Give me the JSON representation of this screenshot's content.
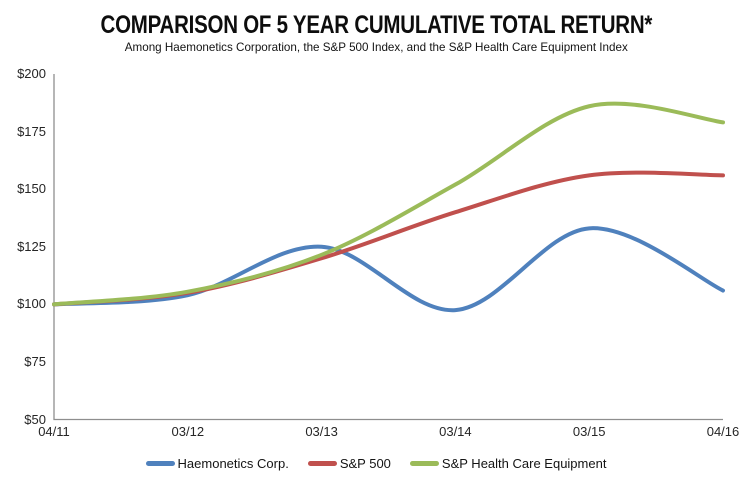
{
  "title": "COMPARISON OF 5 YEAR CUMULATIVE TOTAL RETURN*",
  "subtitle": "Among Haemonetics Corporation, the S&P 500 Index, and the S&P Health Care Equipment Index",
  "chart_data": {
    "type": "line",
    "smooth": true,
    "title": "COMPARISON OF 5 YEAR CUMULATIVE TOTAL RETURN*",
    "subtitle": "Among Haemonetics Corporation, the S&P 500 Index, and the S&P Health Care Equipment Index",
    "categories": [
      "04/11",
      "03/12",
      "03/13",
      "03/14",
      "03/15",
      "04/16"
    ],
    "series": [
      {
        "name": "Haemonetics Corp.",
        "color": "#4F81BD",
        "values": [
          100,
          104,
          125,
          97.5,
          133,
          106
        ]
      },
      {
        "name": "S&P 500",
        "color": "#C0504D",
        "values": [
          100,
          105,
          120,
          140,
          156,
          156
        ]
      },
      {
        "name": "S&P Health Care Equipment",
        "color": "#9BBB59",
        "values": [
          100,
          105.5,
          121.5,
          152,
          186,
          179
        ]
      }
    ],
    "xlabel": "",
    "ylabel": "",
    "ylim": [
      50,
      200
    ],
    "yticks": [
      200,
      175,
      150,
      125,
      100,
      75,
      50
    ],
    "ytick_labels": [
      "$200",
      "$175",
      "$150",
      "$125",
      "$100",
      "$75",
      "$50"
    ],
    "grid": false,
    "legend_position": "bottom",
    "axis_color": "#8e8e8e",
    "tick_label_color": "#262626",
    "line_width": 4
  }
}
